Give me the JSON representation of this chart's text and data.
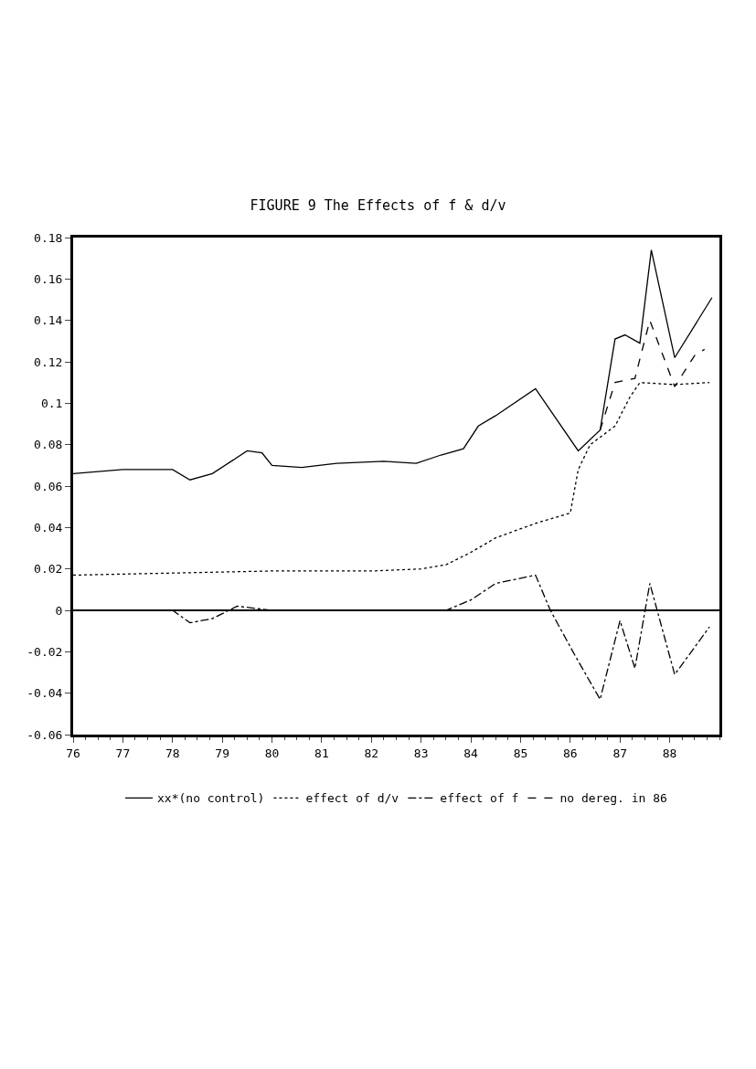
{
  "chart_data": {
    "type": "line",
    "title": "FIGURE 9 The Effects of f & d/v",
    "xlim": [
      76,
      89
    ],
    "xticks": [
      76,
      77,
      78,
      79,
      80,
      81,
      82,
      83,
      84,
      85,
      86,
      87,
      88
    ],
    "ylim": [
      -0.06,
      0.18
    ],
    "yticks": [
      -0.06,
      -0.04,
      -0.02,
      0,
      0.02,
      0.04,
      0.06,
      0.08,
      0.1,
      0.12,
      0.14,
      0.16,
      0.18
    ],
    "grid": false,
    "legend": "bottom",
    "marker": "none",
    "ref_lines": [
      {
        "axis": "y",
        "value": 0,
        "color": "#000000",
        "line_style": "solid"
      }
    ],
    "series": [
      {
        "name": "xx*(no control)",
        "color": "#000000",
        "line_style": "solid",
        "x": [
          76,
          77,
          78,
          78.35,
          78.8,
          79.5,
          79.8,
          80,
          80.6,
          81.3,
          82.25,
          82.9,
          83.4,
          83.85,
          84.15,
          84.5,
          85.3,
          86.16,
          86.6,
          86.9,
          87.1,
          87.4,
          87.63,
          88.1,
          88.85
        ],
        "values": [
          0.066,
          0.068,
          0.068,
          0.063,
          0.066,
          0.077,
          0.076,
          0.07,
          0.069,
          0.071,
          0.072,
          0.071,
          0.075,
          0.078,
          0.089,
          0.094,
          0.107,
          0.077,
          0.087,
          0.131,
          0.133,
          0.129,
          0.174,
          0.122,
          0.151
        ]
      },
      {
        "name": "effect of d/v",
        "color": "#000000",
        "line_style": "dotted",
        "x": [
          76,
          78,
          80,
          82,
          83,
          83.5,
          84,
          84.5,
          85.3,
          86,
          86.16,
          86.4,
          86.9,
          87.2,
          87.4,
          88.1,
          88.8
        ],
        "values": [
          0.017,
          0.018,
          0.019,
          0.019,
          0.02,
          0.022,
          0.028,
          0.035,
          0.042,
          0.047,
          0.068,
          0.08,
          0.089,
          0.103,
          0.11,
          0.109,
          0.11
        ]
      },
      {
        "name": "effect of f",
        "color": "#000000",
        "line_style": "dashdot",
        "x": [
          76,
          78,
          78.35,
          78.8,
          79.3,
          80,
          82,
          83.5,
          84,
          84.5,
          85.3,
          85.6,
          86.1,
          86.6,
          87.0,
          87.3,
          87.6,
          88.1,
          88.8
        ],
        "values": [
          0,
          0,
          -0.006,
          -0.004,
          0.002,
          0,
          0,
          0,
          0.005,
          0.013,
          0.017,
          0,
          -0.022,
          -0.043,
          -0.005,
          -0.028,
          0.013,
          -0.031,
          -0.008
        ]
      },
      {
        "name": "no dereg. in 86",
        "color": "#000000",
        "line_style": "dashed",
        "x": [
          86.6,
          86.9,
          87.3,
          87.6,
          88.1,
          88.5,
          88.7
        ],
        "values": [
          0.087,
          0.11,
          0.112,
          0.14,
          0.108,
          0.123,
          0.126
        ]
      }
    ]
  }
}
